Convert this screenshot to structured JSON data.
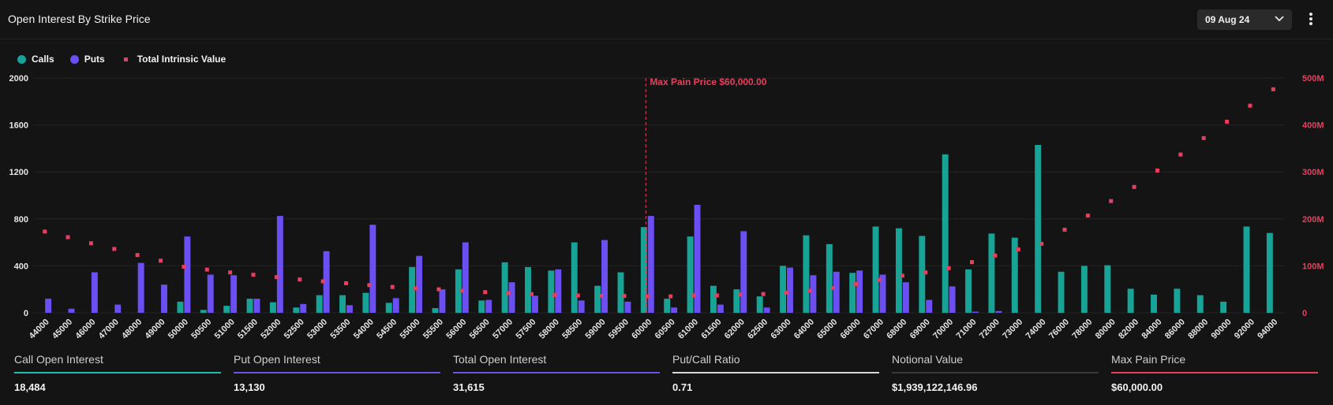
{
  "header": {
    "title": "Open Interest By Strike Price",
    "date": "09 Aug 24"
  },
  "legend": [
    {
      "label": "Calls",
      "color": "#17a396",
      "shape": "dot"
    },
    {
      "label": "Puts",
      "color": "#6c4ff2",
      "shape": "dot"
    },
    {
      "label": "Total Intrinsic Value",
      "color": "#e83f5f",
      "shape": "square"
    }
  ],
  "chart_data": {
    "type": "bar",
    "categories": [
      "44000",
      "45000",
      "46000",
      "47000",
      "48000",
      "49000",
      "50000",
      "50500",
      "51000",
      "51500",
      "52000",
      "52500",
      "53000",
      "53500",
      "54000",
      "54500",
      "55000",
      "55500",
      "56000",
      "56500",
      "57000",
      "57500",
      "58000",
      "58500",
      "59000",
      "59500",
      "60000",
      "60500",
      "61000",
      "61500",
      "62000",
      "62500",
      "63000",
      "64000",
      "65000",
      "66000",
      "67000",
      "68000",
      "69000",
      "70000",
      "71000",
      "72000",
      "73000",
      "74000",
      "76000",
      "78000",
      "80000",
      "82000",
      "84000",
      "86000",
      "88000",
      "90000",
      "92000",
      "94000"
    ],
    "series": [
      {
        "name": "Calls",
        "axis": "left",
        "color": "#17a396",
        "values": [
          0,
          0,
          0,
          0,
          0,
          0,
          95,
          25,
          60,
          120,
          90,
          45,
          150,
          150,
          170,
          85,
          390,
          40,
          370,
          105,
          430,
          390,
          360,
          600,
          230,
          345,
          730,
          120,
          650,
          230,
          200,
          140,
          400,
          660,
          585,
          340,
          735,
          720,
          655,
          1350,
          370,
          675,
          640,
          1430,
          350,
          400,
          405,
          205,
          155,
          205,
          150,
          95,
          735,
          680
        ]
      },
      {
        "name": "Puts",
        "axis": "left",
        "color": "#6c4ff2",
        "values": [
          120,
          35,
          345,
          70,
          425,
          240,
          650,
          325,
          320,
          120,
          825,
          75,
          525,
          65,
          750,
          125,
          485,
          200,
          600,
          110,
          260,
          145,
          370,
          105,
          620,
          95,
          825,
          45,
          920,
          70,
          695,
          45,
          385,
          320,
          350,
          360,
          325,
          260,
          110,
          225,
          10,
          15,
          0,
          0,
          0,
          0,
          0,
          0,
          0,
          0,
          0,
          0,
          0,
          0
        ]
      },
      {
        "name": "Total Intrinsic Value",
        "axis": "right",
        "color": "#e83f5f",
        "type": "scatter",
        "values": [
          173000000,
          161000000,
          148000000,
          136000000,
          123000000,
          111000000,
          98000000,
          92000000,
          86000000,
          81000000,
          76000000,
          71000000,
          67000000,
          63000000,
          59000000,
          55000000,
          52000000,
          50000000,
          47000000,
          44000000,
          42000000,
          40000000,
          38000000,
          37000000,
          36000000,
          36000000,
          35000000,
          35000000,
          37000000,
          37000000,
          39000000,
          40000000,
          43000000,
          47000000,
          53000000,
          61000000,
          70000000,
          79000000,
          86000000,
          95000000,
          108000000,
          122000000,
          135000000,
          147000000,
          177000000,
          207000000,
          238000000,
          268000000,
          303000000,
          337000000,
          372000000,
          407000000,
          441000000,
          476000000
        ]
      }
    ],
    "ylim": [
      0,
      2000
    ],
    "y_ticks": [
      "0",
      "400",
      "800",
      "1200",
      "1600",
      "2000"
    ],
    "y2lim": [
      0,
      500000000
    ],
    "y2_ticks": [
      "0",
      "100M",
      "200M",
      "300M",
      "400M",
      "500M"
    ],
    "grid": "horizontal",
    "annotation": {
      "label": "Max Pain Price $60,000.00",
      "category": "60000",
      "color": "#e83f5f"
    }
  },
  "stats": [
    {
      "label": "Call Open Interest",
      "value": "18,484",
      "color": "#1fbfae"
    },
    {
      "label": "Put Open Interest",
      "value": "13,130",
      "color": "#6a55e0"
    },
    {
      "label": "Total Open Interest",
      "value": "31,615",
      "color": "#6a55e0"
    },
    {
      "label": "Put/Call Ratio",
      "value": "0.71",
      "color": "#d8d8d8"
    },
    {
      "label": "Notional Value",
      "value": "$1,939,122,146.96",
      "color": "#3a3a3a"
    },
    {
      "label": "Max Pain Price",
      "value": "$60,000.00",
      "color": "#e83f5f"
    }
  ]
}
